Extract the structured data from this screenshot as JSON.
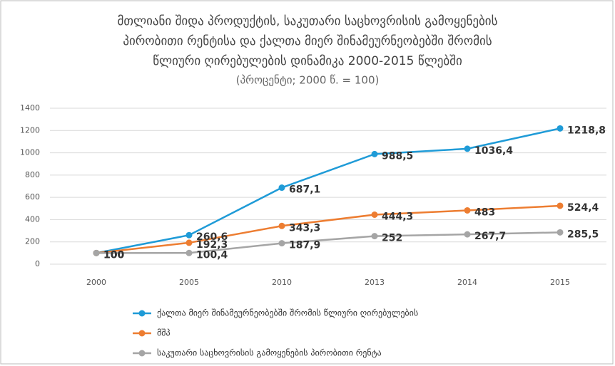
{
  "chart_data": {
    "type": "line",
    "title": [
      "მთლიანი შიდა პროდუქტის, საკუთარი საცხოვრისის გამოყენების",
      "პირობითი რენტისა და ქალთა მიერ შინამეურნეობებში შრომის",
      "წლიური ღირებულების დინამიკა 2000-2015 წლებში"
    ],
    "subtitle": "(პროცენტი; 2000 წ. = 100)",
    "categories": [
      "2000",
      "2005",
      "2010",
      "2013",
      "2014",
      "2015"
    ],
    "series": [
      {
        "name": "ქალთა მიერ შინამეურნეობებში შრომის წლიური ღირებულების",
        "color": "#1f9bd7",
        "values": [
          100,
          260.6,
          687.1,
          988.5,
          1036.4,
          1218.8
        ],
        "value_labels": [
          "100",
          "260,6",
          "687,1",
          "988,5",
          "1036,4",
          "1218,8"
        ]
      },
      {
        "name": "მშპ",
        "color": "#ed7d31",
        "values": [
          100,
          192.3,
          343.3,
          444.3,
          483,
          524.4
        ],
        "value_labels": [
          "100",
          "192,3",
          "343,3",
          "444,3",
          "483",
          "524,4"
        ]
      },
      {
        "name": "საკუთარი საცხოვრისის გამოყენების პირობითი რენტა",
        "color": "#a5a5a5",
        "values": [
          100,
          100.4,
          187.9,
          252,
          267.7,
          285.5
        ],
        "value_labels": [
          "100",
          "100,4",
          "187,9",
          "252",
          "267,7",
          "285,5"
        ]
      }
    ],
    "ylim": [
      0,
      1400
    ],
    "yticks": [
      0,
      200,
      400,
      600,
      800,
      1000,
      1200,
      1400
    ],
    "grid": true,
    "legend": "bottom"
  }
}
